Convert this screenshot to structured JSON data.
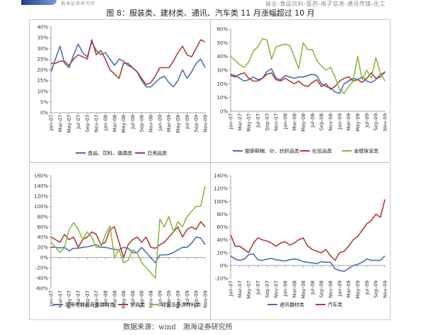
{
  "header": {
    "logo_text": "渤海证券研究所",
    "note": "商业-食品饮料-医药-电子信息-通讯传媒-化工",
    "figure_title": "图 8：服装类、建材类、通讯、汽车类 11 月涨幅超过 10 月"
  },
  "footer": {
    "source": "数据来源：wind　渤海证券研究所"
  },
  "chart_data": [
    {
      "type": "line",
      "x": [
        "Jan-07",
        "Feb-07",
        "Mar-07",
        "Apr-07",
        "May-07",
        "Jun-07",
        "Jul-07",
        "Aug-07",
        "Sep-07",
        "Oct-07",
        "Nov-07",
        "Dec-07",
        "Jan-08",
        "Feb-08",
        "Mar-08",
        "Apr-08",
        "May-08",
        "Jun-08",
        "Jul-08",
        "Aug-08",
        "Sep-08",
        "Oct-08",
        "Nov-08",
        "Dec-08",
        "Jan-09",
        "Feb-09",
        "Mar-09",
        "Apr-09",
        "May-09",
        "Jun-09",
        "Jul-09",
        "Aug-09",
        "Sep-09",
        "Oct-09",
        "Nov-09"
      ],
      "xticks": [
        "Jan-07",
        "Mar-07",
        "May-07",
        "Jul-07",
        "Sep-07",
        "Nov-07",
        "Jan-08",
        "Mar-08",
        "May-08",
        "Jul-08",
        "Sep-08",
        "Nov-08",
        "Jan-09",
        "Mar-09",
        "May-09",
        "Jul-09",
        "Sep-09",
        "Nov-09"
      ],
      "ylim": [
        0,
        40
      ],
      "yticks": [
        0,
        5,
        10,
        15,
        20,
        25,
        30,
        35,
        40
      ],
      "ytick_labels": [
        "0%",
        "5%",
        "10%",
        "15%",
        "20%",
        "25%",
        "30%",
        "35%",
        "40%"
      ],
      "series": [
        {
          "name": "食品、饮料、烟酒类",
          "color": "#4a6fb5",
          "values": [
            19,
            25,
            31,
            23,
            21,
            27,
            32,
            28,
            26,
            33,
            29,
            27,
            28,
            25,
            22,
            25,
            24,
            22,
            21,
            19,
            15,
            12,
            12,
            14,
            16,
            17,
            14,
            12,
            15,
            20,
            16,
            19,
            23,
            25,
            21
          ]
        },
        {
          "name": "日用品类",
          "color": "#b23b38",
          "values": [
            23,
            23,
            24,
            24,
            22,
            25,
            27,
            26,
            25,
            34,
            27,
            29,
            25,
            20,
            18,
            16,
            23,
            23,
            21,
            19,
            16,
            13,
            14,
            17,
            21,
            21,
            21,
            24,
            28,
            31,
            27,
            26,
            30,
            34,
            33
          ]
        }
      ]
    },
    {
      "type": "line",
      "x": [
        "Jan-07",
        "Feb-07",
        "Mar-07",
        "Apr-07",
        "May-07",
        "Jun-07",
        "Jul-07",
        "Aug-07",
        "Sep-07",
        "Oct-07",
        "Nov-07",
        "Dec-07",
        "Jan-08",
        "Feb-08",
        "Mar-08",
        "Apr-08",
        "May-08",
        "Jun-08",
        "Jul-08",
        "Aug-08",
        "Sep-08",
        "Oct-08",
        "Nov-08",
        "Dec-08",
        "Jan-09",
        "Feb-09",
        "Mar-09",
        "Apr-09",
        "May-09",
        "Jun-09",
        "Jul-09",
        "Aug-09",
        "Sep-09",
        "Oct-09",
        "Nov-09"
      ],
      "xticks": [
        "Jan-07",
        "Mar-07",
        "May-07",
        "Jul-07",
        "Sep-07",
        "Nov-07",
        "Jan-08",
        "Mar-08",
        "May-08",
        "Jul-08",
        "Sep-08",
        "Nov-08",
        "Jan-09",
        "Mar-09",
        "May-09",
        "Jul-09",
        "Sep-09",
        "Nov-09"
      ],
      "ylim": [
        0,
        60
      ],
      "yticks": [
        0,
        10,
        20,
        30,
        40,
        50,
        60
      ],
      "ytick_labels": [
        "0%",
        "10%",
        "20%",
        "30%",
        "40%",
        "50%",
        "60%"
      ],
      "series": [
        {
          "name": "服装鞋帽、针、纺织品类",
          "color": "#4a6fb5",
          "values": [
            27,
            26,
            24,
            22,
            23,
            25,
            23,
            24,
            29,
            31,
            24,
            23,
            26,
            25,
            24,
            25,
            25,
            26,
            27,
            26,
            20,
            18,
            17,
            14,
            13,
            20,
            22,
            24,
            23,
            25,
            22,
            21,
            23,
            27,
            28
          ]
        },
        {
          "name": "化妆品类",
          "color": "#b23b38",
          "values": [
            26,
            25,
            27,
            28,
            24,
            22,
            22,
            24,
            27,
            28,
            23,
            22,
            24,
            22,
            20,
            22,
            19,
            18,
            21,
            23,
            18,
            20,
            16,
            18,
            22,
            24,
            25,
            22,
            23,
            21,
            24,
            28,
            24,
            25,
            29
          ]
        },
        {
          "name": "金银珠宝类",
          "color": "#8db842",
          "values": [
            40,
            37,
            34,
            32,
            36,
            44,
            47,
            53,
            52,
            38,
            47,
            48,
            49,
            48,
            40,
            31,
            50,
            45,
            45,
            37,
            33,
            30,
            32,
            25,
            16,
            13,
            18,
            22,
            40,
            23,
            30,
            24,
            39,
            28,
            22
          ]
        }
      ]
    },
    {
      "type": "line",
      "x": [
        "Jan-07",
        "Feb-07",
        "Mar-07",
        "Apr-07",
        "May-07",
        "Jun-07",
        "Jul-07",
        "Aug-07",
        "Sep-07",
        "Oct-07",
        "Nov-07",
        "Dec-07",
        "Jan-08",
        "Feb-08",
        "Mar-08",
        "Apr-08",
        "May-08",
        "Jun-08",
        "Jul-08",
        "Aug-08",
        "Sep-08",
        "Oct-08",
        "Nov-08",
        "Dec-08",
        "Jan-09",
        "Feb-09",
        "Mar-09",
        "Apr-09",
        "May-09",
        "Jun-09",
        "Jul-09",
        "Aug-09",
        "Sep-09",
        "Oct-09",
        "Nov-09"
      ],
      "xticks": [
        "Jan-07",
        "Mar-07",
        "May-07",
        "Jul-07",
        "Sep-07",
        "Nov-07",
        "Jan-08",
        "Mar-08",
        "May-08",
        "Jul-08",
        "Sep-08",
        "Nov-08",
        "Jan-09",
        "Mar-09",
        "May-09",
        "Jul-09",
        "Sep-09",
        "Nov-09"
      ],
      "ylim": [
        -60,
        160
      ],
      "yticks": [
        -60,
        -40,
        -20,
        0,
        20,
        40,
        60,
        80,
        100,
        120,
        140,
        160
      ],
      "ytick_labels": [
        "-60%",
        "-40%",
        "-20%",
        "0%",
        "20%",
        "40%",
        "60%",
        "80%",
        "100%",
        "120%",
        "140%",
        "160%"
      ],
      "series": [
        {
          "name": "家用电器和音像器材类",
          "color": "#4a6fb5",
          "values": [
            20,
            20,
            19,
            20,
            13,
            18,
            18,
            20,
            21,
            23,
            25,
            20,
            20,
            18,
            16,
            15,
            20,
            18,
            10,
            9,
            20,
            10,
            0,
            -10,
            5,
            5,
            6,
            10,
            15,
            20,
            20,
            28,
            40,
            38,
            25
          ]
        },
        {
          "name": "家具类",
          "color": "#b23b38",
          "values": [
            40,
            35,
            30,
            45,
            35,
            40,
            20,
            35,
            40,
            50,
            45,
            25,
            30,
            55,
            60,
            30,
            0,
            25,
            35,
            40,
            30,
            40,
            20,
            18,
            25,
            30,
            40,
            50,
            60,
            40,
            55,
            60,
            55,
            70,
            60
          ]
        },
        {
          "name": "建筑及装潢材料类",
          "color": "#8db842",
          "values": [
            30,
            20,
            10,
            20,
            55,
            68,
            55,
            35,
            50,
            40,
            20,
            20,
            45,
            62,
            0,
            15,
            -10,
            -5,
            15,
            10,
            -10,
            -20,
            -30,
            -40,
            75,
            60,
            80,
            50,
            70,
            60,
            80,
            90,
            100,
            100,
            140
          ]
        }
      ]
    },
    {
      "type": "line",
      "x": [
        "Jan-07",
        "Feb-07",
        "Mar-07",
        "Apr-07",
        "May-07",
        "Jun-07",
        "Jul-07",
        "Aug-07",
        "Sep-07",
        "Oct-07",
        "Nov-07",
        "Dec-07",
        "Jan-08",
        "Feb-08",
        "Mar-08",
        "Apr-08",
        "May-08",
        "Jun-08",
        "Jul-08",
        "Aug-08",
        "Sep-08",
        "Oct-08",
        "Nov-08",
        "Dec-08",
        "Jan-09",
        "Feb-09",
        "Mar-09",
        "Apr-09",
        "May-09",
        "Jun-09",
        "Jul-09",
        "Aug-09",
        "Sep-09",
        "Oct-09",
        "Nov-09"
      ],
      "xticks": [
        "Jan-07",
        "Mar-07",
        "May-07",
        "Jul-07",
        "Sep-07",
        "Nov-07",
        "Jan-08",
        "Mar-08",
        "May-08",
        "Jul-08",
        "Sep-08",
        "Nov-08",
        "Jan-09",
        "Mar-09",
        "May-09",
        "Jul-09",
        "Sep-09",
        "Nov-09"
      ],
      "ylim": [
        -20,
        140
      ],
      "yticks": [
        -20,
        0,
        20,
        40,
        60,
        80,
        100,
        120,
        140
      ],
      "ytick_labels": [
        "-20%",
        "0%",
        "20%",
        "40%",
        "60%",
        "80%",
        "100%",
        "120%",
        "140%"
      ],
      "series": [
        {
          "name": "通讯器材类",
          "color": "#4a6fb5",
          "values": [
            15,
            10,
            8,
            10,
            17,
            18,
            9,
            8,
            10,
            11,
            9,
            8,
            7,
            9,
            10,
            9,
            6,
            5,
            4,
            3,
            6,
            5,
            5,
            -5,
            -8,
            -9,
            -5,
            0,
            2,
            5,
            10,
            8,
            8,
            8,
            15
          ]
        },
        {
          "name": "汽车类",
          "color": "#b23b38",
          "values": [
            48,
            30,
            30,
            25,
            20,
            35,
            43,
            40,
            38,
            35,
            30,
            35,
            37,
            32,
            35,
            40,
            43,
            30,
            25,
            22,
            20,
            25,
            15,
            8,
            20,
            22,
            30,
            40,
            45,
            55,
            65,
            70,
            80,
            75,
            103
          ]
        }
      ]
    }
  ]
}
